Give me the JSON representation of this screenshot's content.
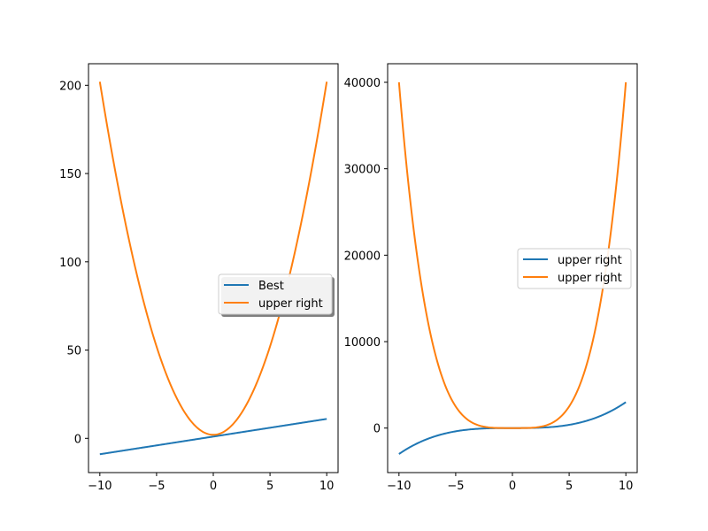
{
  "chart_data": [
    {
      "type": "line",
      "xlim": [
        -11,
        11
      ],
      "ylim": [
        -19.4,
        212.2
      ],
      "xticks": [
        -10,
        -5,
        0,
        5,
        10
      ],
      "xtick_labels": [
        "−10",
        "−5",
        "0",
        "5",
        "10"
      ],
      "yticks": [
        0,
        50,
        100,
        150,
        200
      ],
      "ytick_labels": [
        "0",
        "50",
        "100",
        "150",
        "200"
      ],
      "grid": false,
      "legend": {
        "placement": "center-right",
        "shadow": true
      },
      "series": [
        {
          "name": "Best",
          "color": "#1f77b4",
          "function": "x + 1",
          "x": [
            -10,
            -5,
            0,
            5,
            10
          ],
          "values": [
            -9,
            -4,
            1,
            6,
            11
          ]
        },
        {
          "name": "upper right",
          "color": "#ff7f0e",
          "function": "2*x^2 + 2",
          "x": [
            -10,
            -7.5,
            -5,
            -2.5,
            0,
            2.5,
            5,
            7.5,
            10
          ],
          "values": [
            202,
            114.5,
            52,
            14.5,
            2,
            14.5,
            52,
            114.5,
            202
          ]
        }
      ]
    },
    {
      "type": "line",
      "xlim": [
        -11,
        11
      ],
      "ylim": [
        -5150,
        42150
      ],
      "xticks": [
        -10,
        -5,
        0,
        5,
        10
      ],
      "xtick_labels": [
        "−10",
        "−5",
        "0",
        "5",
        "10"
      ],
      "yticks": [
        0,
        10000,
        20000,
        30000,
        40000
      ],
      "ytick_labels": [
        "0",
        "10000",
        "20000",
        "30000",
        "40000"
      ],
      "grid": false,
      "legend": {
        "placement": "center-right",
        "shadow": false
      },
      "series": [
        {
          "name": "upper right",
          "color": "#1f77b4",
          "function": "3*x^3",
          "x": [
            -10,
            -5,
            0,
            5,
            10
          ],
          "values": [
            -3000,
            -375,
            0,
            375,
            3000
          ]
        },
        {
          "name": "upper right",
          "color": "#ff7f0e",
          "function": "4*x^4",
          "x": [
            -10,
            -5,
            0,
            5,
            10
          ],
          "values": [
            40000,
            2500,
            0,
            2500,
            40000
          ]
        }
      ]
    }
  ]
}
